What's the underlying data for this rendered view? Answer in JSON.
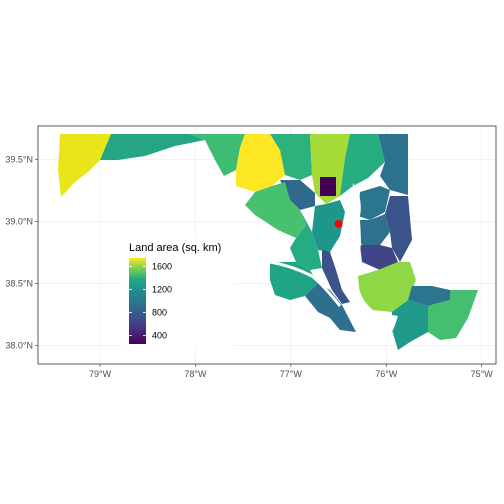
{
  "chart_data": {
    "type": "choropleth",
    "x_ticks": [
      "79°W",
      "78°W",
      "77°W",
      "76°W",
      "75°W"
    ],
    "y_ticks": [
      "39.5°N",
      "39.0°N",
      "38.5°N",
      "38.0°N"
    ],
    "x_range": [
      -79.65,
      -74.85
    ],
    "y_range": [
      37.85,
      39.77
    ],
    "legend": {
      "title": "Land area (sq. km)",
      "labels": [
        "1600",
        "1200",
        "800",
        "400"
      ],
      "range": [
        250,
        1750
      ],
      "placement": "inside-left"
    },
    "highlight_point": {
      "lon": -76.5,
      "lat": 38.98,
      "color": "#ff0000"
    },
    "colors": {
      "panel_border": "#333333",
      "grid": "#ebebeb",
      "water": "#ffffff"
    }
  }
}
